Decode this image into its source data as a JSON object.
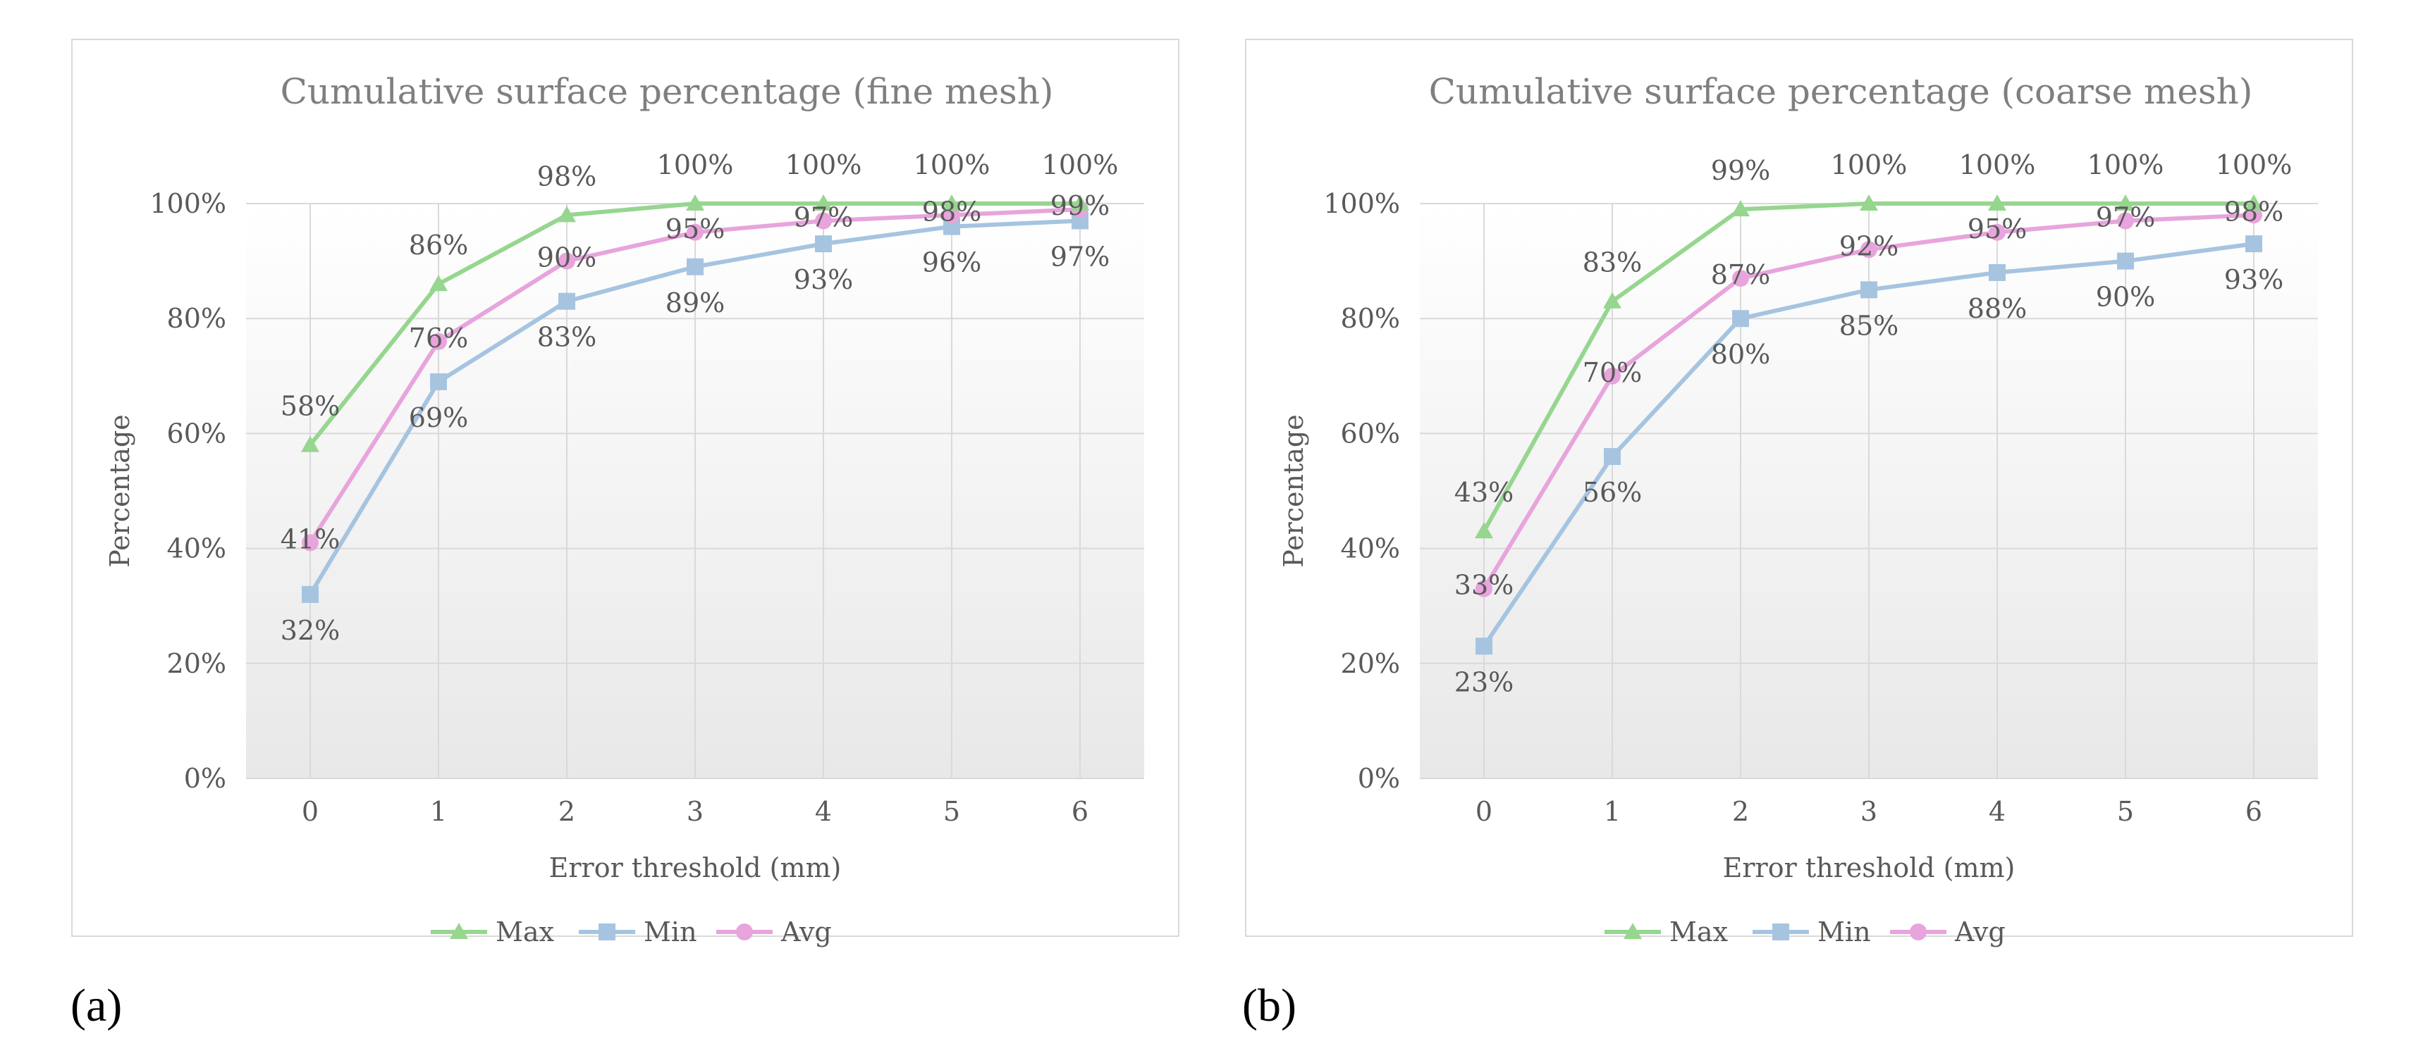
{
  "colors": {
    "max": "#96d68f",
    "min": "#a6c4e0",
    "avg": "#e8a4dc",
    "grid": "#d9d9d9",
    "text": "#595959",
    "title": "#7f7f7f"
  },
  "chart_data": [
    {
      "type": "line",
      "title": "Cumulative surface percentage (fine mesh)",
      "xlabel": "Error threshold (mm)",
      "ylabel": "Percentage",
      "categories": [
        "0",
        "1",
        "2",
        "3",
        "4",
        "5",
        "6"
      ],
      "ylim": [
        0,
        100
      ],
      "yticks": [
        "0%",
        "20%",
        "40%",
        "60%",
        "80%",
        "100%"
      ],
      "grid": true,
      "legend": "bottom",
      "series": [
        {
          "name": "Max",
          "key": "max",
          "values": [
            58,
            86,
            98,
            100,
            100,
            100,
            100
          ],
          "labels": [
            "58%",
            "86%",
            "98%",
            "100%",
            "100%",
            "100%",
            "100%"
          ]
        },
        {
          "name": "Min",
          "key": "min",
          "values": [
            32,
            69,
            83,
            89,
            93,
            96,
            97
          ],
          "labels": [
            "32%",
            "69%",
            "83%",
            "89%",
            "93%",
            "96%",
            "97%"
          ]
        },
        {
          "name": "Avg",
          "key": "avg",
          "values": [
            41,
            76,
            90,
            95,
            97,
            98,
            99
          ],
          "labels": [
            "41%",
            "76%",
            "90%",
            "95%",
            "97%",
            "98%",
            "99%"
          ]
        }
      ]
    },
    {
      "type": "line",
      "title": "Cumulative surface percentage (coarse mesh)",
      "xlabel": "Error threshold (mm)",
      "ylabel": "Percentage",
      "categories": [
        "0",
        "1",
        "2",
        "3",
        "4",
        "5",
        "6"
      ],
      "ylim": [
        0,
        100
      ],
      "yticks": [
        "0%",
        "20%",
        "40%",
        "60%",
        "80%",
        "100%"
      ],
      "grid": true,
      "legend": "bottom",
      "series": [
        {
          "name": "Max",
          "key": "max",
          "values": [
            43,
            83,
            99,
            100,
            100,
            100,
            100
          ],
          "labels": [
            "43%",
            "83%",
            "99%",
            "100%",
            "100%",
            "100%",
            "100%"
          ]
        },
        {
          "name": "Min",
          "key": "min",
          "values": [
            23,
            56,
            80,
            85,
            88,
            90,
            93
          ],
          "labels": [
            "23%",
            "56%",
            "80%",
            "85%",
            "88%",
            "90%",
            "93%"
          ]
        },
        {
          "name": "Avg",
          "key": "avg",
          "values": [
            33,
            70,
            87,
            92,
            95,
            97,
            98
          ],
          "labels": [
            "33%",
            "70%",
            "87%",
            "92%",
            "95%",
            "97%",
            "98%"
          ]
        }
      ]
    }
  ],
  "subfigure_labels": [
    "(a)",
    "(b)"
  ]
}
